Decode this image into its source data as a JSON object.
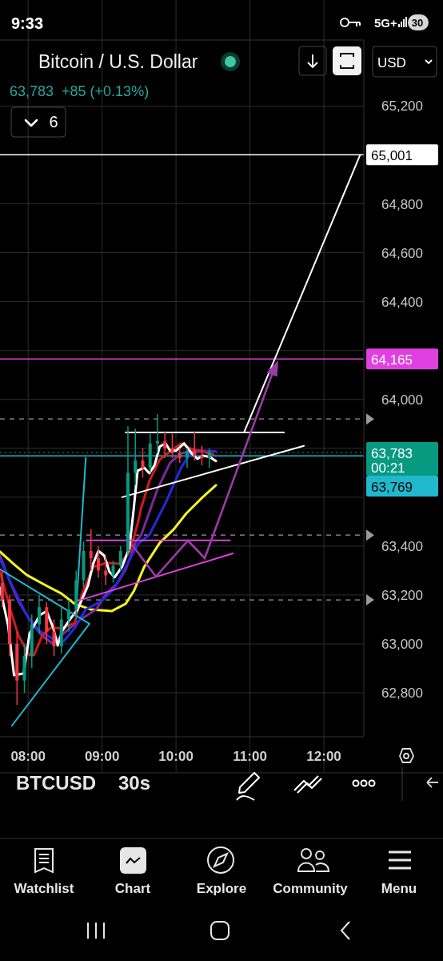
{
  "chart_data": {
    "type": "candlestick",
    "title": "Bitcoin / U.S. Dollar",
    "subtitle": "63,783  +85 (+0.13%)",
    "x": [
      7.65,
      7.75,
      7.85,
      7.95,
      8.05,
      8.15,
      8.25,
      8.35,
      8.45,
      8.55,
      8.65,
      8.75,
      8.85,
      8.95,
      9.05,
      9.15,
      9.25,
      9.35,
      9.45,
      9.55,
      9.65,
      9.75,
      9.85,
      9.95,
      10.05,
      10.15,
      10.25,
      10.35,
      10.45
    ],
    "ohlc": [
      [
        63250,
        63300,
        63150,
        63180
      ],
      [
        63180,
        63200,
        62950,
        63000
      ],
      [
        63000,
        63050,
        62750,
        62850
      ],
      [
        62850,
        63000,
        62800,
        62950
      ],
      [
        62950,
        63120,
        62900,
        63080
      ],
      [
        63080,
        63200,
        63040,
        63150
      ],
      [
        63150,
        63170,
        63000,
        63050
      ],
      [
        63050,
        63100,
        62950,
        62990
      ],
      [
        62990,
        63150,
        62960,
        63100
      ],
      [
        63100,
        63180,
        63050,
        63140
      ],
      [
        63140,
        63300,
        63100,
        63260
      ],
      [
        63260,
        63420,
        63230,
        63380
      ],
      [
        63380,
        63470,
        63300,
        63350
      ],
      [
        63350,
        63400,
        63270,
        63300
      ],
      [
        63300,
        63360,
        63240,
        63280
      ],
      [
        63280,
        63340,
        63250,
        63320
      ],
      [
        63320,
        63400,
        63300,
        63380
      ],
      [
        63380,
        63890,
        63360,
        63700
      ],
      [
        63700,
        63880,
        63650,
        63750
      ],
      [
        63750,
        63800,
        63680,
        63720
      ],
      [
        63720,
        63860,
        63700,
        63820
      ],
      [
        63820,
        63940,
        63780,
        63830
      ],
      [
        63830,
        63870,
        63760,
        63800
      ],
      [
        63800,
        63860,
        63760,
        63780
      ],
      [
        63780,
        63800,
        63740,
        63760
      ],
      [
        63760,
        63800,
        63720,
        63790
      ],
      [
        63790,
        63870,
        63750,
        63770
      ],
      [
        63770,
        63810,
        63730,
        63760
      ],
      [
        63760,
        63800,
        63720,
        63783
      ]
    ],
    "series": [
      {
        "type": "line",
        "color": "#f5f51f",
        "x": [
          7.62,
          7.8,
          7.98,
          8.24,
          8.45,
          8.63,
          8.84,
          9.13,
          9.32,
          9.43,
          9.57,
          9.78,
          9.97,
          10.14,
          10.36,
          10.54
        ],
        "values": [
          63377,
          63328,
          63282,
          63239,
          63206,
          63164,
          63141,
          63134,
          63164,
          63216,
          63315,
          63413,
          63469,
          63534,
          63600,
          63649
        ]
      },
      {
        "type": "line",
        "color": "#7b2a9a",
        "x": [
          7.62,
          7.76,
          7.87,
          8.05,
          8.19,
          8.34,
          8.48,
          8.7,
          8.92,
          9.06,
          9.21,
          9.32,
          9.46,
          9.53,
          9.75,
          9.92,
          10.07,
          10.21,
          10.36
        ],
        "values": [
          63361,
          63249,
          63174,
          63085,
          63033,
          63000,
          63043,
          63098,
          63141,
          63206,
          63249,
          63305,
          63420,
          63446,
          63633,
          63741,
          63780,
          63787,
          63790
        ]
      },
      {
        "type": "line",
        "color": "#2828e0",
        "x": [
          7.62,
          7.8,
          7.98,
          8.16,
          8.34,
          8.48,
          8.63,
          8.78,
          8.99,
          9.17,
          9.32,
          9.49,
          9.64,
          9.86,
          10.07,
          10.18,
          10.36,
          10.54
        ],
        "values": [
          63347,
          63229,
          63118,
          63052,
          63020,
          63010,
          63065,
          63141,
          63174,
          63229,
          63315,
          63410,
          63446,
          63577,
          63721,
          63774,
          63790,
          63787
        ]
      },
      {
        "type": "line",
        "color": "#d11a1a",
        "x": [
          7.62,
          7.76,
          7.87,
          8.02,
          8.08,
          8.19,
          8.3,
          8.45,
          8.63,
          8.73,
          8.88,
          9.06,
          9.24,
          9.38,
          9.49,
          9.53,
          9.64,
          9.78,
          9.92,
          10.07,
          10.21,
          10.36,
          10.51
        ],
        "values": [
          63295,
          63141,
          63033,
          62954,
          62954,
          63033,
          63065,
          63065,
          63085,
          63206,
          63315,
          63331,
          63328,
          63380,
          63502,
          63557,
          63666,
          63754,
          63787,
          63820,
          63797,
          63787,
          63774
        ]
      },
      {
        "type": "line",
        "color": "#ffffff",
        "x": [
          7.62,
          7.73,
          7.81,
          7.94,
          8.02,
          8.16,
          8.25,
          8.34,
          8.4,
          8.46,
          8.56,
          8.67,
          8.81,
          8.88,
          8.95,
          9.03,
          9.1,
          9.17,
          9.27,
          9.37,
          9.43,
          9.48,
          9.57,
          9.64,
          9.71,
          9.78,
          9.86,
          9.92,
          10.0,
          10.11,
          10.21,
          10.29,
          10.36,
          10.46,
          10.54
        ],
        "values": [
          63229,
          63075,
          62872,
          62879,
          63043,
          63118,
          63134,
          63065,
          62993,
          63052,
          63098,
          63141,
          63239,
          63328,
          63380,
          63361,
          63295,
          63272,
          63315,
          63393,
          63557,
          63708,
          63721,
          63698,
          63731,
          63807,
          63820,
          63790,
          63790,
          63820,
          63780,
          63757,
          63770,
          63764,
          63748
        ]
      },
      {
        "type": "line",
        "color": "#1fb8cd",
        "x": [
          7.62,
          8.83,
          7.78
        ],
        "values": [
          63305,
          63082,
          62665
        ]
      },
      {
        "type": "line",
        "color": "#1fb8cd",
        "x": [
          8.65,
          8.78
        ],
        "values": [
          63141,
          63761
        ]
      },
      {
        "type": "line",
        "color": "#e040e0",
        "x": [
          8.79,
          10.73
        ],
        "values": [
          63423,
          63423
        ]
      },
      {
        "type": "line",
        "color": "#e040e0",
        "x": [
          8.65,
          10.77
        ],
        "values": [
          63174,
          63370
        ]
      },
      {
        "type": "line",
        "color": "#ffffff",
        "x": [
          9.27,
          11.73
        ],
        "values": [
          63600,
          63810
        ]
      },
      {
        "type": "line",
        "color": "#ffffff",
        "x": [
          9.32,
          11.46
        ],
        "values": [
          63865,
          63865
        ]
      },
      {
        "type": "line",
        "color": "#ffffff",
        "x": [
          10.92,
          12.49
        ],
        "values": [
          63865,
          65000
        ]
      }
    ],
    "xlim": [
      7.62,
      12.54
    ],
    "ylim": [
      62620,
      65470
    ],
    "xticks": [
      {
        "value": 8,
        "label": "08:00"
      },
      {
        "value": 9,
        "label": "09:00"
      },
      {
        "value": 10,
        "label": "10:00"
      },
      {
        "value": 11,
        "label": "11:00"
      },
      {
        "value": 12,
        "label": "12:00"
      }
    ],
    "yticks": [
      {
        "value": 62800,
        "label": "62,800"
      },
      {
        "value": 63000,
        "label": "63,000"
      },
      {
        "value": 63200,
        "label": "63,200"
      },
      {
        "value": 63400,
        "label": "63,400"
      },
      {
        "value": 63600,
        "label": null
      },
      {
        "value": 63800,
        "label": null
      },
      {
        "value": 64000,
        "label": "64,000"
      },
      {
        "value": 64200,
        "label": null
      },
      {
        "value": 64400,
        "label": "64,400"
      },
      {
        "value": 64600,
        "label": "64,600"
      },
      {
        "value": 64800,
        "label": "64,800"
      },
      {
        "value": 65000,
        "label": null
      },
      {
        "value": 65200,
        "label": "65,200"
      }
    ],
    "grid": true,
    "ref_lines": [
      {
        "axis": "y",
        "value": 65001,
        "label": "65,001",
        "color": "#ffffff",
        "line_style": "solid"
      },
      {
        "axis": "y",
        "value": 64165,
        "label": "64,165",
        "color": "#e040e0",
        "line_style": "solid"
      },
      {
        "axis": "y",
        "value": 63783,
        "label": "63,783",
        "color": "#089981",
        "line_style": "dotted"
      },
      {
        "axis": "y",
        "value": 63769,
        "label": "63,769",
        "color": "#1fb8cd",
        "line_style": "solid"
      },
      {
        "axis": "y",
        "value": 63920,
        "label": null,
        "color": "#9a9a9a",
        "line_style": "dashed"
      },
      {
        "axis": "y",
        "value": 63445,
        "label": null,
        "color": "#9a9a9a",
        "line_style": "dashed"
      },
      {
        "axis": "y",
        "value": 63180,
        "label": null,
        "color": "#9a9a9a",
        "line_style": "dashed"
      }
    ],
    "annotations": [
      "9:33",
      "5G+",
      "30",
      "6",
      "USD",
      "00:21",
      "BTCUSD",
      "30s",
      "Watchlist",
      "Chart",
      "Explore",
      "Community",
      "Menu"
    ]
  }
}
